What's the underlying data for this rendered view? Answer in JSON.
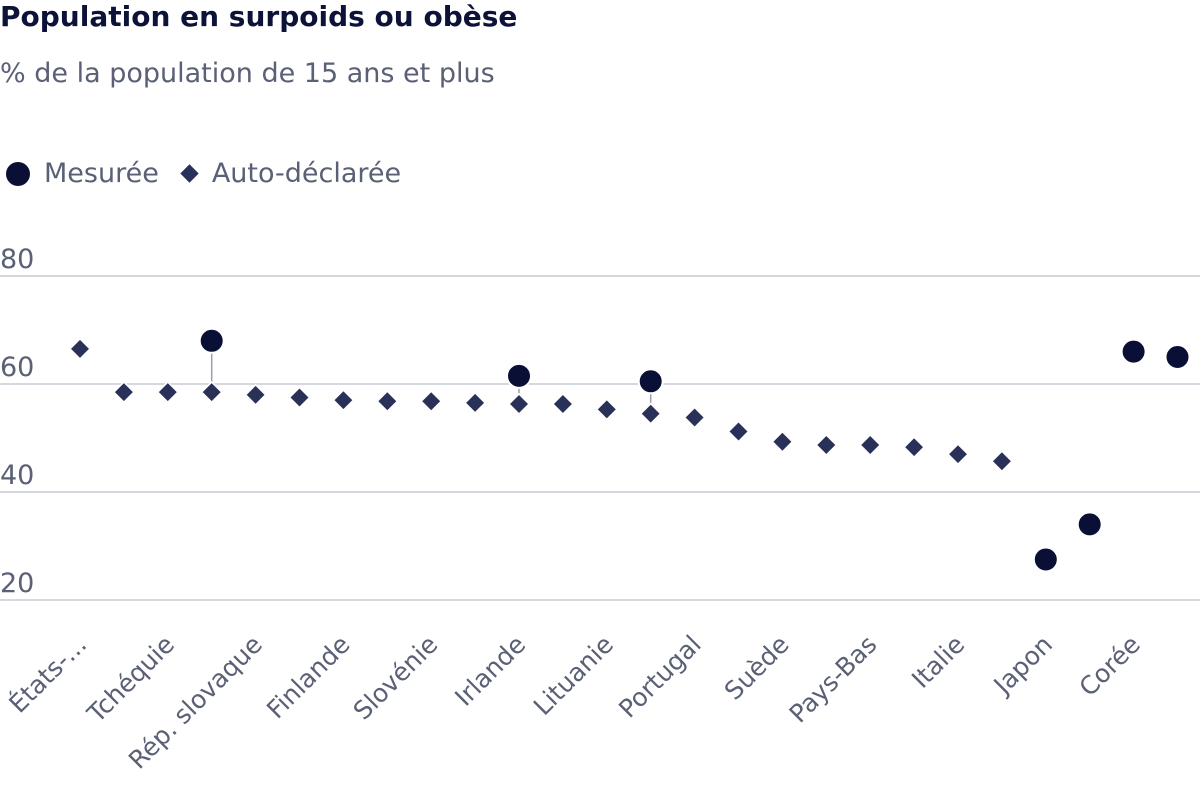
{
  "chart_data": {
    "type": "scatter",
    "title": "Population en surpoids ou obèse",
    "subtitle": "% de la population de 15 ans et plus",
    "ylim": [
      15,
      85
    ],
    "yticks": [
      20,
      40,
      60,
      80
    ],
    "grid": true,
    "legend_position": "top-left",
    "colors": {
      "measured": "#0a0f35",
      "self_reported": "#2a3158",
      "grid": "#c9ccd6",
      "text": "#5a6075",
      "title": "#0c1238"
    },
    "categories": [
      "États-...",
      "",
      "Tchéquie",
      "",
      "Rép. slovaque",
      "",
      "Finlande",
      "",
      "Slovénie",
      "",
      "Irlande",
      "",
      "Lituanie",
      "",
      "Portugal",
      "",
      "Suède",
      "",
      "Pays-Bas",
      "",
      "Italie",
      "",
      "Japon",
      "",
      "Corée",
      ""
    ],
    "series": [
      {
        "name": "Mesurée",
        "marker": "circle",
        "values": [
          null,
          null,
          null,
          68,
          null,
          null,
          null,
          null,
          null,
          null,
          61.5,
          null,
          null,
          60.5,
          null,
          null,
          null,
          null,
          null,
          null,
          null,
          null,
          27.5,
          34,
          66,
          65
        ]
      },
      {
        "name": "Auto-déclarée",
        "marker": "diamond",
        "values": [
          66.5,
          58.5,
          58.5,
          58.5,
          58,
          57.5,
          57,
          56.8,
          56.8,
          56.5,
          56.3,
          56.3,
          55.3,
          54.5,
          53.8,
          51.2,
          49.3,
          48.7,
          48.7,
          48.3,
          47,
          45.7,
          null,
          null,
          null,
          null
        ]
      }
    ]
  }
}
